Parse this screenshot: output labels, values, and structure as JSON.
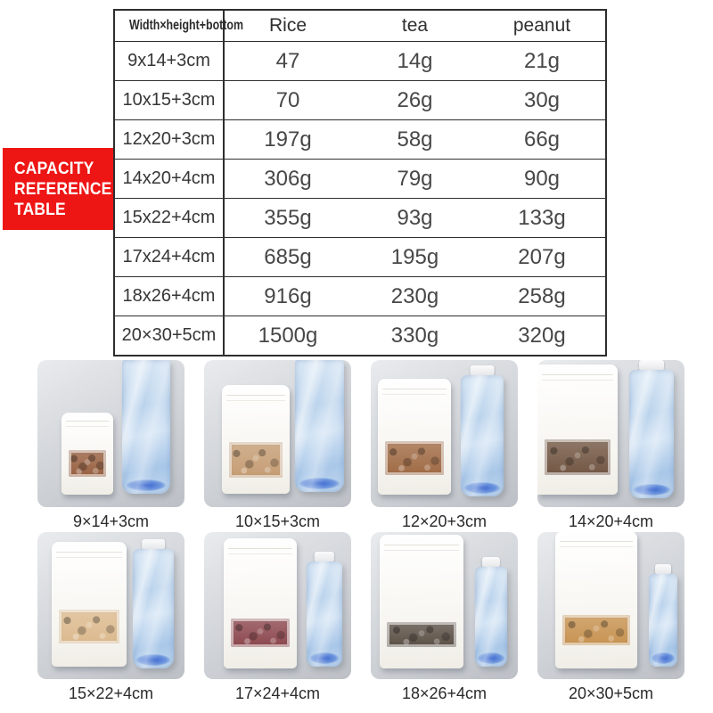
{
  "page": {
    "background": "#ffffff"
  },
  "badge": {
    "bg": "#ee1515",
    "text_color": "#ffffff",
    "lines": [
      "CAPACITY",
      "REFERENCE",
      "TABLE"
    ]
  },
  "table": {
    "header": {
      "dimension": "Width×height+bottom",
      "columns": [
        "Rice",
        "tea",
        "peanut"
      ]
    },
    "rows": [
      {
        "size": "9x14+3cm",
        "rice": "47",
        "tea": "14g",
        "peanut": "21g"
      },
      {
        "size": "10x15+3cm",
        "rice": "70",
        "tea": "26g",
        "peanut": "30g"
      },
      {
        "size": "12x20+3cm",
        "rice": "197g",
        "tea": "58g",
        "peanut": "66g"
      },
      {
        "size": "14x20+4cm",
        "rice": "306g",
        "tea": "79g",
        "peanut": "90g"
      },
      {
        "size": "15x22+4cm",
        "rice": "355g",
        "tea": "93g",
        "peanut": "133g"
      },
      {
        "size": "17x24+4cm",
        "rice": "685g",
        "tea": "195g",
        "peanut": "207g"
      },
      {
        "size": "18x26+4cm",
        "rice": "916g",
        "tea": "230g",
        "peanut": "258g"
      },
      {
        "size": "20×30+5cm",
        "rice": "1500g",
        "tea": "330g",
        "peanut": "320g"
      }
    ]
  },
  "chart_data": {
    "type": "table",
    "title": "CAPACITY REFERENCE TABLE",
    "row_header": "Width×height+bottom",
    "categories": [
      "9x14+3cm",
      "10x15+3cm",
      "12x20+3cm",
      "14x20+4cm",
      "15x22+4cm",
      "17x24+4cm",
      "18x26+4cm",
      "20×30+5cm"
    ],
    "series": [
      {
        "name": "Rice",
        "values": [
          "47",
          "70",
          "197g",
          "306g",
          "355g",
          "685g",
          "916g",
          "1500g"
        ]
      },
      {
        "name": "tea",
        "values": [
          "14g",
          "26g",
          "58g",
          "79g",
          "93g",
          "195g",
          "230g",
          "330g"
        ]
      },
      {
        "name": "peanut",
        "values": [
          "21g",
          "30g",
          "66g",
          "90g",
          "133g",
          "207g",
          "258g",
          "320g"
        ]
      }
    ]
  },
  "gallery": {
    "items": [
      {
        "caption": "9×14+3cm",
        "contents": "pine nuts",
        "content_color": "#8a4a26"
      },
      {
        "caption": "10×15+3cm",
        "contents": "walnuts",
        "content_color": "#bd8f60"
      },
      {
        "caption": "12×20+3cm",
        "contents": "macadamia nuts",
        "content_color": "#93562b"
      },
      {
        "caption": "14×20+4cm",
        "contents": "dried mushrooms",
        "content_color": "#5f3f29"
      },
      {
        "caption": "15×22+4cm",
        "contents": "peanuts",
        "content_color": "#d7b07e"
      },
      {
        "caption": "17×24+4cm",
        "contents": "red dates",
        "content_color": "#7c2e35"
      },
      {
        "caption": "18×26+4cm",
        "contents": "melon seeds",
        "content_color": "#45382c"
      },
      {
        "caption": "20×30+5cm",
        "contents": "dried citrus slices",
        "content_color": "#bf8338"
      }
    ]
  }
}
